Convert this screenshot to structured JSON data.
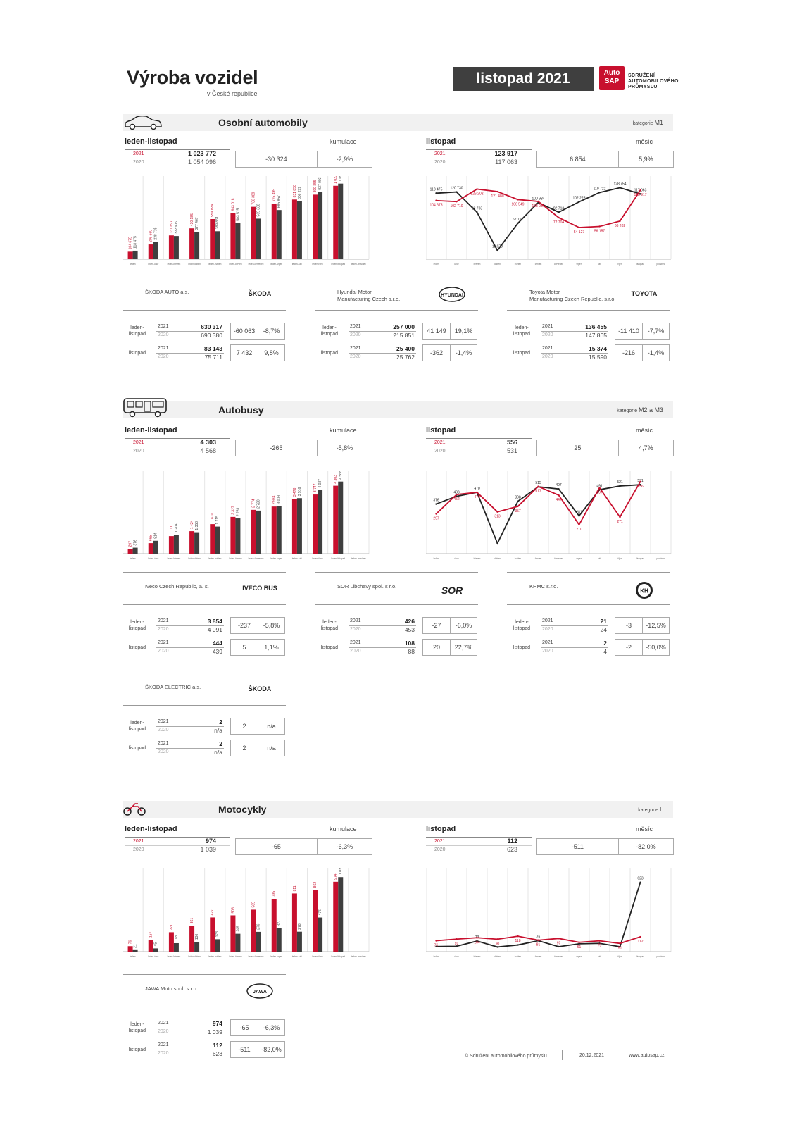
{
  "header": {
    "title": "Výroba vozidel",
    "subtitle": "v České republice",
    "month_badge": "listopad 2021",
    "logo_line1": "Auto",
    "logo_line2": "SAP",
    "org_line1": "SDRUŽENÍ",
    "org_line2": "AUTOMOBILOVÉHO",
    "org_line3": "PRŮMYSLU"
  },
  "labels": {
    "cum_title": "leden-listopad",
    "cum_sub": "kumulace",
    "month_title": "listopad",
    "month_sub": "měsíc",
    "y2021": "2021",
    "y2020": "2020",
    "cum_row": "leden-listopad",
    "cum_row_a": "leden-",
    "cum_row_b": "listopad",
    "month_row": "listopad",
    "na": "n/a"
  },
  "months": [
    "leden",
    "únor",
    "březen",
    "duben",
    "květen",
    "červen",
    "červenec",
    "srpen",
    "září",
    "říjen",
    "listopad",
    "prosinec"
  ],
  "cum_months": [
    "leden",
    "leden-únor",
    "leden-březen",
    "leden-duben",
    "leden-květen",
    "leden-červen",
    "leden-červenec",
    "leden-srpen",
    "leden-září",
    "leden-říjen",
    "leden-listopad",
    "leden-prosinec"
  ],
  "sections": {
    "cars": {
      "title": "Osobní automobily",
      "cat_label": "kategorie",
      "cat": "M1",
      "cum": {
        "v2021": "1 023 772",
        "v2020": "1 054 096",
        "diff": "-30 324",
        "pct": "-2,9%"
      },
      "month": {
        "v2021": "123 917",
        "v2020": "117 063",
        "diff": "6 854",
        "pct": "5,9%"
      },
      "manufacturers": [
        {
          "name": "ŠKODA AUTO a.s.",
          "name2": "",
          "logo": "ŠKODA",
          "cum21": "630 317",
          "cum20": "690 380",
          "cdiff": "-60 063",
          "cpct": "-8,7%",
          "m21": "83 143",
          "m20": "75 711",
          "mdiff": "7 432",
          "mpct": "9,8%"
        },
        {
          "name": "Hyundai Motor",
          "name2": "Manufacturing Czech s.r.o.",
          "logo": "HYUNDAI",
          "cum21": "257 000",
          "cum20": "215 851",
          "cdiff": "41 149",
          "cpct": "19,1%",
          "m21": "25 400",
          "m20": "25 762",
          "mdiff": "-362",
          "mpct": "-1,4%"
        },
        {
          "name": "Toyota Motor",
          "name2": "Manufacturing Czech Republic, s.r.o.",
          "logo": "TOYOTA",
          "cum21": "136 455",
          "cum20": "147 865",
          "cdiff": "-11 410",
          "cpct": "-7,7%",
          "m21": "15 374",
          "m20": "15 590",
          "mdiff": "-216",
          "mpct": "-1,4%"
        }
      ]
    },
    "buses": {
      "title": "Autobusy",
      "cat_label": "kategorie",
      "cat": "M2 a M3",
      "cum": {
        "v2021": "4 303",
        "v2020": "4 568",
        "diff": "-265",
        "pct": "-5,8%"
      },
      "month": {
        "v2021": "556",
        "v2020": "531",
        "diff": "25",
        "pct": "4,7%"
      },
      "manufacturers": [
        {
          "name": "Iveco Czech Republic, a. s.",
          "name2": "",
          "logo": "IVECO BUS",
          "cum21": "3 854",
          "cum20": "4 091",
          "cdiff": "-237",
          "cpct": "-5,8%",
          "m21": "444",
          "m20": "439",
          "mdiff": "5",
          "mpct": "1,1%"
        },
        {
          "name": "SOR Libchavy spol. s r.o.",
          "name2": "",
          "logo": "SOR",
          "cum21": "426",
          "cum20": "453",
          "cdiff": "-27",
          "cpct": "-6,0%",
          "m21": "108",
          "m20": "88",
          "mdiff": "20",
          "mpct": "22,7%"
        },
        {
          "name": "KHMC s.r.o.",
          "name2": "",
          "logo": "KH",
          "cum21": "21",
          "cum20": "24",
          "cdiff": "-3",
          "cpct": "-12,5%",
          "m21": "2",
          "m20": "4",
          "mdiff": "-2",
          "mpct": "-50,0%"
        },
        {
          "name": "ŠKODA ELECTRIC a.s.",
          "name2": "",
          "logo": "ŠKODA",
          "cum21": "2",
          "cum20": "n/a",
          "cdiff": "2",
          "cpct": "n/a",
          "m21": "2",
          "m20": "n/a",
          "mdiff": "2",
          "mpct": "n/a"
        }
      ]
    },
    "moto": {
      "title": "Motocykly",
      "cat_label": "kategorie",
      "cat": "L",
      "cum": {
        "v2021": "974",
        "v2020": "1 039",
        "diff": "-65",
        "pct": "-6,3%"
      },
      "month": {
        "v2021": "112",
        "v2020": "623",
        "diff": "-511",
        "pct": "-82,0%"
      },
      "manufacturers": [
        {
          "name": "JAWA Moto spol. s r.o.",
          "name2": "",
          "logo": "JAWA",
          "cum21": "974",
          "cum20": "1 039",
          "cdiff": "-65",
          "cpct": "-6,3%",
          "m21": "112",
          "m20": "623",
          "mdiff": "-511",
          "mpct": "-82,0%"
        }
      ]
    }
  },
  "footer": {
    "copyright": "© Sdružení automobilového průmyslu",
    "date": "20.12.2021",
    "url": "www.autosap.cz"
  },
  "chart_data": [
    {
      "id": "cars-cum",
      "type": "bar",
      "categories": [
        "leden",
        "leden-únor",
        "leden-březen",
        "leden-duben",
        "leden-květen",
        "leden-červen",
        "leden-červenec",
        "leden-srpen",
        "leden-září",
        "leden-říjen",
        "leden-listopad",
        "leden-prosinec"
      ],
      "series": [
        {
          "name": "2021",
          "color": "#c8102e",
          "values": [
            104675,
            205660,
            331697,
            430185,
            559824,
            643018,
            730389,
            775495,
            831850,
            899855,
            1023772,
            null
          ],
          "labels": [
            "104 675",
            "205 660",
            "331 697",
            "430 185",
            "559 824",
            "643 018",
            "730 389",
            "775 495",
            "831 850",
            "899 855",
            "1 023 772",
            ""
          ]
        },
        {
          "name": "2020",
          "color": "#3f3f3f",
          "values": [
            118475,
            238735,
            322906,
            377467,
            389861,
            503515,
            565338,
            685857,
            806279,
            937003,
            1054096,
            null
          ],
          "labels": [
            "118 475",
            "238 735",
            "322 906",
            "377 467",
            "389 861",
            "503 515",
            "565 338",
            "685 857",
            "806 279",
            "937 003",
            "1 054 096",
            ""
          ]
        }
      ],
      "ylim": [
        0,
        1100000
      ]
    },
    {
      "id": "cars-month",
      "type": "line",
      "categories": [
        "leden",
        "únor",
        "březen",
        "duben",
        "květen",
        "červen",
        "červenec",
        "srpen",
        "září",
        "říjen",
        "listopad",
        "prosinec"
      ],
      "series": [
        {
          "name": "2021",
          "color": "#c8102e",
          "values": [
            104675,
            102710,
            126202,
            121480,
            106549,
            103081,
            72704,
            54127,
            56157,
            66202,
            123917,
            null
          ],
          "labels": [
            "104 675",
            "102 710",
            "126 202",
            "121 480",
            "106 549",
            "103 081",
            "72 704",
            "54 127",
            "56 157",
            "66 202",
            "123 917",
            ""
          ]
        },
        {
          "name": "2020",
          "color": "#222222",
          "values": [
            118475,
            120730,
            82703,
            11070,
            62157,
            100934,
            82713,
            102225,
            119722,
            128754,
            117063,
            null
          ],
          "labels": [
            "118 475",
            "120 730",
            "82 703",
            "11 070",
            "62 157",
            "100 934",
            "82 713",
            "102 225",
            "119 722",
            "128 754",
            "117 063",
            ""
          ]
        }
      ],
      "ylim": [
        0,
        140000
      ]
    },
    {
      "id": "bus-cum",
      "type": "bar",
      "categories": [
        "leden",
        "leden-únor",
        "leden-březen",
        "leden-duben",
        "leden-květen",
        "leden-červen",
        "leden-červenec",
        "leden-srpen",
        "leden-září",
        "leden-říjen",
        "leden-listopad",
        "leden-prosinec"
      ],
      "series": [
        {
          "name": "2021",
          "color": "#c8102e",
          "values": [
            297,
            665,
            1111,
            1424,
            1870,
            2327,
            2774,
            2984,
            3476,
            3747,
            4303,
            null
          ],
          "labels": [
            "297",
            "665",
            "1 111",
            "1 424",
            "1 870",
            "2 327",
            "2 774",
            "2 984",
            "3 476",
            "3 747",
            "4 303",
            ""
          ]
        },
        {
          "name": "2020",
          "color": "#3f3f3f",
          "values": [
            376,
            814,
            1204,
            1358,
            1715,
            2231,
            2728,
            3009,
            3516,
            4037,
            4568,
            null
          ],
          "labels": [
            "376",
            "814",
            "1 204",
            "1 358",
            "1 715",
            "2 231",
            "2 728",
            "3 009",
            "3 516",
            "4 037",
            "4 568",
            ""
          ]
        }
      ],
      "ylim": [
        0,
        5000
      ]
    },
    {
      "id": "bus-month",
      "type": "line",
      "categories": [
        "leden",
        "únor",
        "březen",
        "duben",
        "květen",
        "červen",
        "červenec",
        "srpen",
        "září",
        "říjen",
        "listopad",
        "prosinec"
      ],
      "series": [
        {
          "name": "2021",
          "color": "#c8102e",
          "values": [
            297,
            452,
            470,
            313,
            357,
            517,
            447,
            210,
            507,
            271,
            556,
            null
          ],
          "labels": [
            "297",
            "452",
            "470",
            "313",
            "357",
            "517",
            "447",
            "210",
            "507",
            "271",
            "556",
            ""
          ]
        },
        {
          "name": "2020",
          "color": "#222222",
          "values": [
            376,
            438,
            470,
            60,
            398,
            515,
            497,
            281,
            491,
            521,
            531,
            null
          ],
          "labels": [
            "376",
            "438",
            "470",
            "",
            "398",
            "515",
            "497",
            "281",
            "491",
            "521",
            "531",
            ""
          ]
        }
      ],
      "ylim": [
        0,
        600
      ]
    },
    {
      "id": "moto-cum",
      "type": "bar",
      "categories": [
        "leden",
        "leden-únor",
        "leden-březen",
        "leden-duben",
        "leden-květen",
        "leden-červen",
        "leden-červenec",
        "leden-srpen",
        "leden-září",
        "leden-říjen",
        "leden-listopad",
        "leden-prosinec"
      ],
      "series": [
        {
          "name": "2021",
          "color": "#c8102e",
          "values": [
            76,
            167,
            271,
            361,
            477,
            506,
            585,
            735,
            811,
            862,
            974,
            null
          ],
          "labels": [
            "76",
            "167",
            "271",
            "361",
            "477",
            "506",
            "585",
            "735",
            "811",
            "862",
            "974",
            ""
          ]
        },
        {
          "name": "2020",
          "color": "#3f3f3f",
          "values": [
            21,
            45,
            118,
            136,
            173,
            249,
            276,
            327,
            278,
            476,
            1039,
            null
          ],
          "labels": [
            "21",
            "45",
            "118",
            "136",
            "173",
            "249",
            "276",
            "327",
            "278",
            "476",
            "1 039",
            ""
          ]
        }
      ],
      "ylim": [
        0,
        1100
      ]
    },
    {
      "id": "moto-month",
      "type": "line",
      "categories": [
        "leden",
        "únor",
        "březen",
        "duben",
        "květen",
        "červen",
        "červenec",
        "srpen",
        "září",
        "říjen",
        "listopad",
        "prosinec"
      ],
      "series": [
        {
          "name": "2021",
          "color": "#c8102e",
          "values": [
            76,
            91,
            104,
            90,
            118,
            81,
            97,
            61,
            75,
            51,
            112,
            null
          ],
          "labels": [
            "76",
            "91",
            "104",
            "90",
            "118",
            "81",
            "97",
            "61",
            "75",
            "51",
            "112",
            ""
          ]
        },
        {
          "name": "2020",
          "color": "#222222",
          "values": [
            21,
            24,
            73,
            17,
            36,
            76,
            20,
            47,
            51,
            20,
            623,
            null
          ],
          "labels": [
            "",
            "",
            "73",
            "",
            "",
            "76",
            "",
            "",
            "",
            "",
            "623",
            ""
          ]
        }
      ],
      "ylim": [
        0,
        700
      ]
    }
  ]
}
